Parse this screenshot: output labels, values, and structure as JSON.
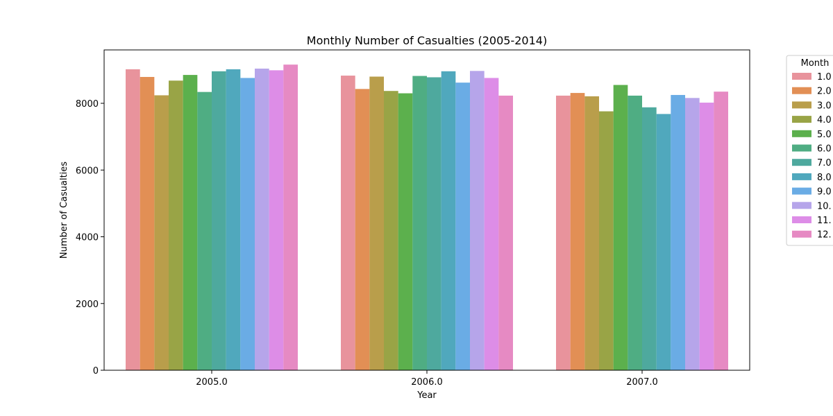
{
  "chart_data": {
    "type": "bar",
    "title": "Monthly Number of Casualties (2005-2014)",
    "xlabel": "Year",
    "ylabel": "Number of Casualties",
    "categories": [
      "2005.0",
      "2006.0",
      "2007.0"
    ],
    "ylim": [
      0,
      9600
    ],
    "yticks": [
      0,
      2000,
      4000,
      6000,
      8000
    ],
    "ytick_labels": [
      "0",
      "2000",
      "4000",
      "6000",
      "8000"
    ],
    "grid": false,
    "legend": {
      "title": "Month",
      "placement": "outside-right"
    },
    "series": [
      {
        "name": "1.0",
        "color": "#e8939c",
        "values": [
          9020,
          8830,
          8230
        ]
      },
      {
        "name": "2.0",
        "color": "#e28f55",
        "values": [
          8790,
          8430,
          8310
        ]
      },
      {
        "name": "3.0",
        "color": "#b99e4b",
        "values": [
          8240,
          8800,
          8210
        ]
      },
      {
        "name": "4.0",
        "color": "#99a446",
        "values": [
          8680,
          8370,
          7760
        ]
      },
      {
        "name": "5.0",
        "color": "#5cb04d",
        "values": [
          8850,
          8300,
          8550
        ]
      },
      {
        "name": "6.0",
        "color": "#4fad83",
        "values": [
          8340,
          8820,
          8230
        ]
      },
      {
        "name": "7.0",
        "color": "#4ea99e",
        "values": [
          8960,
          8780,
          7880
        ]
      },
      {
        "name": "8.0",
        "color": "#50a8bd",
        "values": [
          9020,
          8960,
          7680
        ]
      },
      {
        "name": "9.0",
        "color": "#6aace5",
        "values": [
          8760,
          8620,
          8250
        ]
      },
      {
        "name": "10.0",
        "display": "10.",
        "color": "#b6a5ea",
        "values": [
          9040,
          8970,
          8160
        ]
      },
      {
        "name": "11.0",
        "display": "11.",
        "color": "#dd8de7",
        "values": [
          8990,
          8760,
          8020
        ]
      },
      {
        "name": "12.0",
        "display": "12.",
        "color": "#e68ac3",
        "values": [
          9160,
          8230,
          8350
        ]
      }
    ]
  }
}
